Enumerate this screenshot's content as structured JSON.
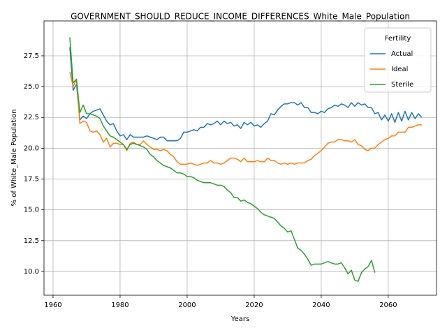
{
  "chart_data": {
    "type": "line",
    "title": "GOVERNMENT_SHOULD_REDUCE_INCOME_DIFFERENCES_White_Male_Population",
    "x_label": "Years",
    "y_label": "% of White_Male Population",
    "legend_title": "Fertility",
    "legend": "upper right",
    "grid": true,
    "x": [
      1965,
      1966,
      1967,
      1968,
      1969,
      1970,
      1971,
      1972,
      1973,
      1974,
      1975,
      1976,
      1977,
      1978,
      1979,
      1980,
      1981,
      1982,
      1983,
      1984,
      1985,
      1986,
      1987,
      1988,
      1989,
      1990,
      1991,
      1992,
      1993,
      1994,
      1995,
      1996,
      1997,
      1998,
      1999,
      2000,
      2001,
      2002,
      2003,
      2004,
      2005,
      2006,
      2007,
      2008,
      2009,
      2010,
      2011,
      2012,
      2013,
      2014,
      2015,
      2016,
      2017,
      2018,
      2019,
      2020,
      2021,
      2022,
      2023,
      2024,
      2025,
      2026,
      2027,
      2028,
      2029,
      2030,
      2031,
      2032,
      2033,
      2034,
      2035,
      2036,
      2037,
      2038,
      2039,
      2040,
      2041,
      2042,
      2043,
      2044,
      2045,
      2046,
      2047,
      2048,
      2049,
      2050,
      2051,
      2052,
      2053,
      2054,
      2055,
      2056,
      2057,
      2058,
      2059,
      2060,
      2061,
      2062,
      2063,
      2064,
      2065,
      2066,
      2067,
      2068,
      2069,
      2070
    ],
    "series": [
      {
        "name": "Actual",
        "color": "#1f77b4",
        "values": [
          28.2,
          24.7,
          25.2,
          22.3,
          22.6,
          22.4,
          22.8,
          23.0,
          23.1,
          23.2,
          22.7,
          22.2,
          21.9,
          22.0,
          21.4,
          21.0,
          21.1,
          20.7,
          21.1,
          20.9,
          20.9,
          20.9,
          20.9,
          21.0,
          20.9,
          20.8,
          20.7,
          20.9,
          20.9,
          20.6,
          20.6,
          20.6,
          20.6,
          20.8,
          21.3,
          21.3,
          21.4,
          21.5,
          21.4,
          21.7,
          21.7,
          22.0,
          21.9,
          22.0,
          22.2,
          21.9,
          22.2,
          22.0,
          22.1,
          21.8,
          21.9,
          21.6,
          22.1,
          21.9,
          22.1,
          21.8,
          21.9,
          21.7,
          22.0,
          22.2,
          22.8,
          22.7,
          23.1,
          23.4,
          23.6,
          23.6,
          23.7,
          23.7,
          23.5,
          23.7,
          23.3,
          23.3,
          22.9,
          22.9,
          22.8,
          23.0,
          22.9,
          23.2,
          23.3,
          23.5,
          23.4,
          23.6,
          23.5,
          23.3,
          23.7,
          23.4,
          23.7,
          23.5,
          23.6,
          23.3,
          23.3,
          22.8,
          22.9,
          22.3,
          22.7,
          22.2,
          22.8,
          22.1,
          22.9,
          22.2,
          23.0,
          22.3,
          22.9,
          22.4,
          22.8,
          22.5
        ]
      },
      {
        "name": "Ideal",
        "color": "#ff7f0e",
        "values": [
          26.2,
          25.0,
          25.6,
          22.0,
          22.2,
          22.1,
          21.4,
          21.3,
          21.4,
          21.1,
          20.5,
          20.8,
          20.1,
          20.4,
          20.4,
          20.3,
          20.3,
          19.8,
          20.4,
          20.5,
          20.3,
          20.3,
          20.6,
          20.3,
          20.1,
          19.9,
          19.9,
          19.8,
          19.9,
          19.8,
          19.5,
          19.3,
          18.9,
          18.7,
          18.7,
          18.7,
          18.8,
          18.7,
          18.6,
          18.7,
          18.8,
          18.8,
          19.0,
          18.8,
          18.8,
          18.7,
          18.8,
          19.0,
          19.2,
          19.2,
          19.1,
          18.9,
          19.2,
          18.9,
          18.9,
          18.9,
          19.0,
          18.9,
          18.9,
          19.2,
          19.0,
          19.0,
          18.8,
          18.7,
          18.8,
          18.7,
          18.8,
          18.7,
          18.8,
          18.8,
          18.8,
          19.0,
          19.1,
          19.4,
          19.6,
          19.8,
          20.1,
          20.4,
          20.5,
          20.5,
          20.7,
          20.7,
          20.6,
          20.6,
          20.5,
          20.7,
          20.3,
          20.2,
          19.9,
          19.8,
          20.0,
          20.0,
          20.3,
          20.5,
          20.7,
          20.8,
          21.0,
          21.0,
          21.3,
          21.3,
          21.3,
          21.7,
          21.7,
          21.8,
          21.9,
          21.9
        ]
      },
      {
        "name": "Sterile",
        "color": "#2ca02c",
        "values": [
          29.0,
          25.3,
          25.6,
          22.9,
          23.5,
          22.8,
          22.8,
          22.7,
          22.6,
          22.4,
          21.8,
          21.4,
          21.0,
          20.9,
          20.7,
          20.5,
          20.3,
          19.9,
          20.3,
          20.4,
          20.3,
          20.2,
          20.1,
          19.9,
          19.5,
          19.3,
          19.0,
          18.8,
          18.6,
          18.5,
          18.4,
          18.2,
          18.0,
          18.0,
          17.9,
          17.7,
          17.7,
          17.6,
          17.4,
          17.3,
          17.2,
          17.2,
          17.2,
          17.1,
          17.0,
          17.0,
          16.9,
          16.6,
          16.4,
          16.0,
          16.0,
          15.7,
          15.8,
          15.6,
          15.5,
          15.3,
          15.1,
          14.8,
          14.6,
          14.5,
          14.4,
          14.3,
          14.0,
          13.7,
          13.5,
          13.2,
          13.3,
          12.6,
          11.9,
          11.7,
          11.4,
          11.0,
          10.5,
          10.6,
          10.6,
          10.6,
          10.7,
          10.8,
          10.7,
          10.6,
          10.6,
          10.7,
          10.3,
          9.8,
          10.1,
          9.3,
          9.2,
          9.9,
          10.2,
          10.4,
          10.9,
          9.9,
          null,
          null,
          null,
          null,
          null,
          null,
          null,
          null,
          null,
          null,
          null,
          null,
          null,
          null
        ]
      }
    ],
    "xlim": [
      1957.3,
      2074.4
    ],
    "xticks": [
      1960,
      1980,
      2000,
      2020,
      2040,
      2060
    ],
    "ylim": [
      8.07,
      30.33
    ],
    "yticks": [
      {
        "value": 10,
        "label": "10.0"
      },
      12.5,
      {
        "value": 15,
        "label": "15.0"
      },
      17.5,
      {
        "value": 20,
        "label": "20.0"
      },
      22.5,
      {
        "value": 25,
        "label": "25.0"
      },
      27.5
    ]
  }
}
